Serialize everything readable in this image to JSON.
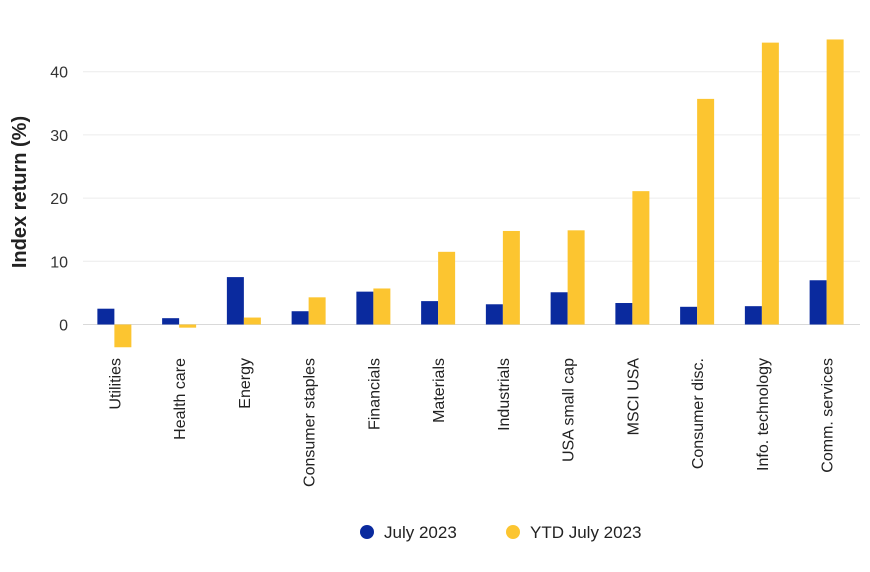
{
  "chart_data": {
    "type": "bar",
    "title": "",
    "xlabel": "",
    "ylabel": "Index return (%)",
    "ylim": [
      -4,
      46
    ],
    "yticks": [
      0,
      10,
      20,
      30,
      40
    ],
    "grid": true,
    "legend_position": "bottom-center",
    "categories": [
      "Utilities",
      "Health care",
      "Energy",
      "Consumer staples",
      "Financials",
      "Materials",
      "Industrials",
      "USA small cap",
      "MSCI USA",
      "Consumer disc.",
      "Info. technology",
      "Comm. services"
    ],
    "series": [
      {
        "name": "July 2023",
        "color": "#0a2a9e",
        "values": [
          2.5,
          1.0,
          7.5,
          2.1,
          5.2,
          3.7,
          3.2,
          5.1,
          3.4,
          2.8,
          2.9,
          7.0
        ]
      },
      {
        "name": "YTD July 2023",
        "color": "#fcc530",
        "values": [
          -3.6,
          -0.5,
          1.1,
          4.3,
          5.7,
          11.5,
          14.8,
          14.9,
          21.1,
          35.7,
          44.6,
          45.1
        ]
      }
    ]
  }
}
